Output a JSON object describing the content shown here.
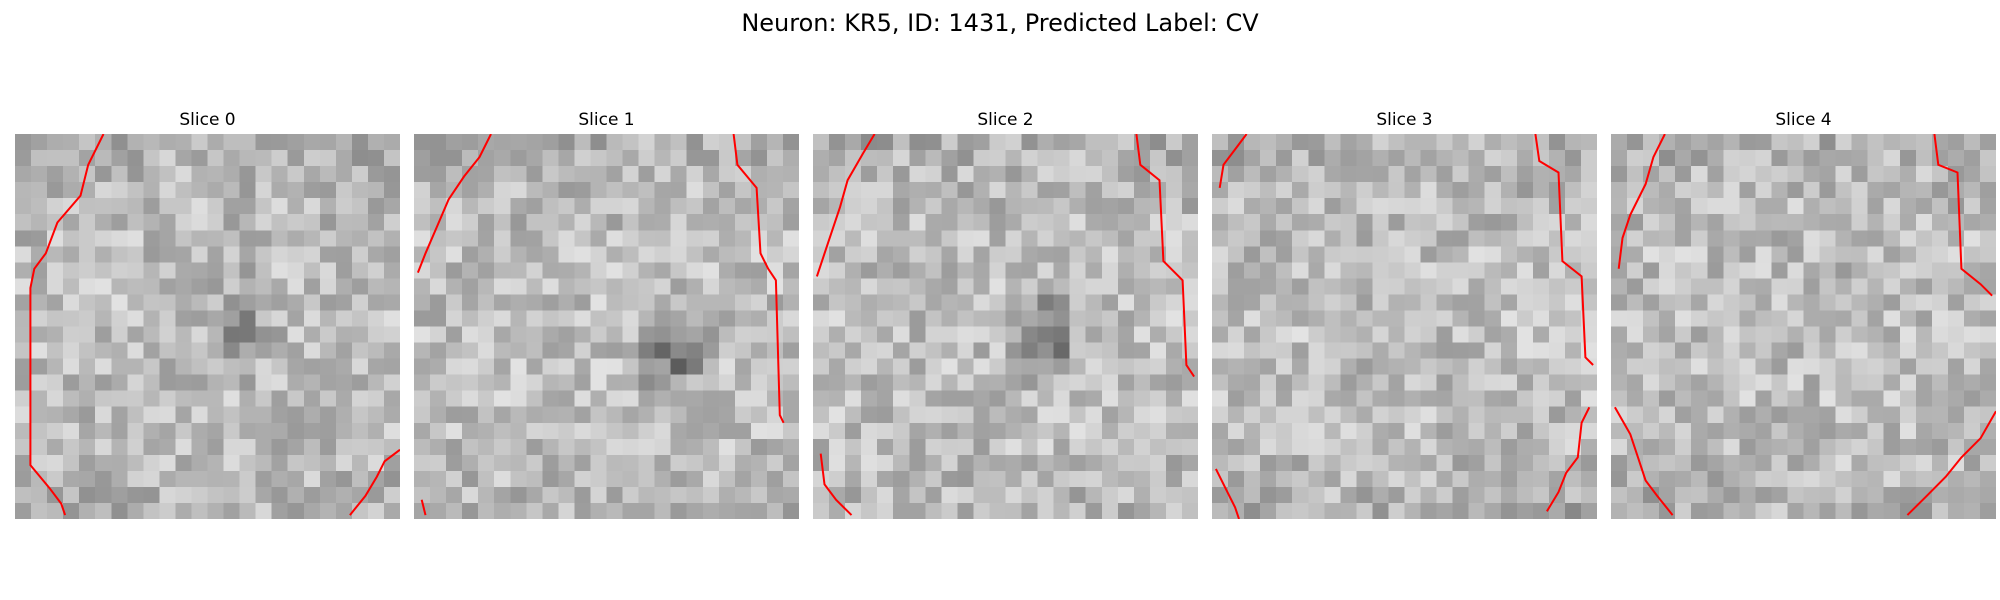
{
  "figure": {
    "title": "Neuron: KR5, ID: 1431, Predicted Label: CV"
  },
  "slices": [
    {
      "title": "Slice 0",
      "seed": 11,
      "dark_center": [
        0.58,
        0.5
      ],
      "dark_strength": 0.35,
      "corner_darkness": [
        0.55,
        0.25,
        0.4,
        0.12
      ],
      "contours": [
        [
          [
            0.23,
            0.0
          ],
          [
            0.19,
            0.08
          ],
          [
            0.17,
            0.16
          ],
          [
            0.11,
            0.23
          ],
          [
            0.08,
            0.31
          ],
          [
            0.05,
            0.35
          ],
          [
            0.04,
            0.4
          ],
          [
            0.04,
            0.86
          ],
          [
            0.09,
            0.92
          ],
          [
            0.12,
            0.96
          ],
          [
            0.13,
            0.99
          ]
        ],
        [
          [
            1.0,
            0.82
          ],
          [
            0.96,
            0.85
          ],
          [
            0.94,
            0.89
          ],
          [
            0.91,
            0.94
          ],
          [
            0.87,
            0.99
          ]
        ]
      ]
    },
    {
      "title": "Slice 1",
      "seed": 29,
      "dark_center": [
        0.67,
        0.57
      ],
      "dark_strength": 0.55,
      "corner_darkness": [
        0.18,
        0.05,
        0.06,
        0.1
      ],
      "contours": [
        [
          [
            0.2,
            0.0
          ],
          [
            0.17,
            0.06
          ],
          [
            0.13,
            0.11
          ],
          [
            0.09,
            0.17
          ],
          [
            0.06,
            0.24
          ],
          [
            0.03,
            0.31
          ],
          [
            0.01,
            0.36
          ]
        ],
        [
          [
            0.83,
            0.0
          ],
          [
            0.84,
            0.08
          ],
          [
            0.89,
            0.14
          ],
          [
            0.9,
            0.31
          ],
          [
            0.92,
            0.35
          ],
          [
            0.94,
            0.38
          ],
          [
            0.95,
            0.73
          ],
          [
            0.96,
            0.75
          ]
        ],
        [
          [
            0.02,
            0.95
          ],
          [
            0.03,
            0.99
          ]
        ]
      ]
    },
    {
      "title": "Slice 2",
      "seed": 43,
      "dark_center": [
        0.6,
        0.53
      ],
      "dark_strength": 0.6,
      "corner_darkness": [
        0.45,
        0.2,
        0.08,
        0.1
      ],
      "contours": [
        [
          [
            0.16,
            0.0
          ],
          [
            0.13,
            0.05
          ],
          [
            0.09,
            0.12
          ],
          [
            0.07,
            0.19
          ],
          [
            0.04,
            0.28
          ],
          [
            0.01,
            0.37
          ]
        ],
        [
          [
            0.84,
            0.0
          ],
          [
            0.85,
            0.08
          ],
          [
            0.9,
            0.12
          ],
          [
            0.91,
            0.33
          ],
          [
            0.96,
            0.38
          ],
          [
            0.97,
            0.6
          ],
          [
            0.99,
            0.63
          ]
        ],
        [
          [
            0.02,
            0.83
          ],
          [
            0.03,
            0.91
          ],
          [
            0.06,
            0.95
          ],
          [
            0.1,
            0.99
          ]
        ]
      ]
    },
    {
      "title": "Slice 3",
      "seed": 71,
      "dark_center": [
        0.5,
        0.55
      ],
      "dark_strength": 0.1,
      "corner_darkness": [
        0.12,
        0.1,
        0.2,
        0.25
      ],
      "contours": [
        [
          [
            0.09,
            0.0
          ],
          [
            0.06,
            0.04
          ],
          [
            0.03,
            0.08
          ],
          [
            0.02,
            0.14
          ]
        ],
        [
          [
            0.84,
            0.0
          ],
          [
            0.85,
            0.07
          ],
          [
            0.9,
            0.1
          ],
          [
            0.91,
            0.33
          ],
          [
            0.96,
            0.37
          ],
          [
            0.97,
            0.58
          ],
          [
            0.99,
            0.6
          ]
        ],
        [
          [
            0.01,
            0.87
          ],
          [
            0.04,
            0.93
          ],
          [
            0.06,
            0.97
          ],
          [
            0.07,
            1.0
          ]
        ],
        [
          [
            0.98,
            0.71
          ],
          [
            0.96,
            0.75
          ],
          [
            0.95,
            0.84
          ],
          [
            0.92,
            0.88
          ],
          [
            0.9,
            0.93
          ],
          [
            0.87,
            0.98
          ]
        ]
      ]
    },
    {
      "title": "Slice 4",
      "seed": 97,
      "dark_center": [
        0.55,
        0.42
      ],
      "dark_strength": 0.12,
      "corner_darkness": [
        0.25,
        0.12,
        0.45,
        0.3
      ],
      "contours": [
        [
          [
            0.14,
            0.0
          ],
          [
            0.11,
            0.06
          ],
          [
            0.09,
            0.13
          ],
          [
            0.05,
            0.21
          ],
          [
            0.03,
            0.27
          ],
          [
            0.02,
            0.35
          ]
        ],
        [
          [
            0.84,
            0.0
          ],
          [
            0.85,
            0.08
          ],
          [
            0.9,
            0.1
          ],
          [
            0.91,
            0.35
          ],
          [
            0.96,
            0.39
          ],
          [
            0.99,
            0.42
          ]
        ],
        [
          [
            0.01,
            0.71
          ],
          [
            0.05,
            0.78
          ],
          [
            0.07,
            0.84
          ],
          [
            0.09,
            0.9
          ],
          [
            0.12,
            0.94
          ],
          [
            0.16,
            0.99
          ]
        ],
        [
          [
            1.0,
            0.72
          ],
          [
            0.96,
            0.79
          ],
          [
            0.91,
            0.84
          ],
          [
            0.87,
            0.89
          ],
          [
            0.82,
            0.94
          ],
          [
            0.77,
            0.99
          ]
        ]
      ]
    }
  ]
}
